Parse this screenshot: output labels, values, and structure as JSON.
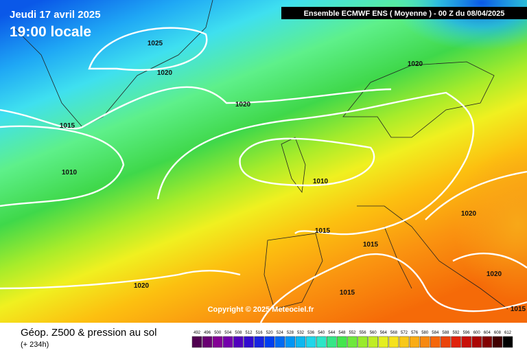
{
  "header": {
    "date": "Jeudi 17 avril 2025",
    "time": "19:00 locale",
    "model": "Ensemble ECMWF ENS  ( Moyenne )  -  00 Z du 08/04/2025"
  },
  "isobar_labels": [
    "1025",
    "1020",
    "1020",
    "1015",
    "1010",
    "1010",
    "1015",
    "1015",
    "1020",
    "1020",
    "1020",
    "1015",
    "1015",
    "1020"
  ],
  "copyright": "Copyright © 2025 Meteociel.fr",
  "footer": {
    "title": "Géop. Z500 & pression au sol",
    "lead": "(+ 234h)"
  },
  "scale_labels": [
    "492",
    "496",
    "500",
    "504",
    "508",
    "512",
    "516",
    "520",
    "524",
    "528",
    "532",
    "536",
    "540",
    "544",
    "548",
    "552",
    "556",
    "560",
    "564",
    "568",
    "572",
    "576",
    "580",
    "584",
    "588",
    "592",
    "596",
    "600",
    "604",
    "608",
    "612"
  ]
}
